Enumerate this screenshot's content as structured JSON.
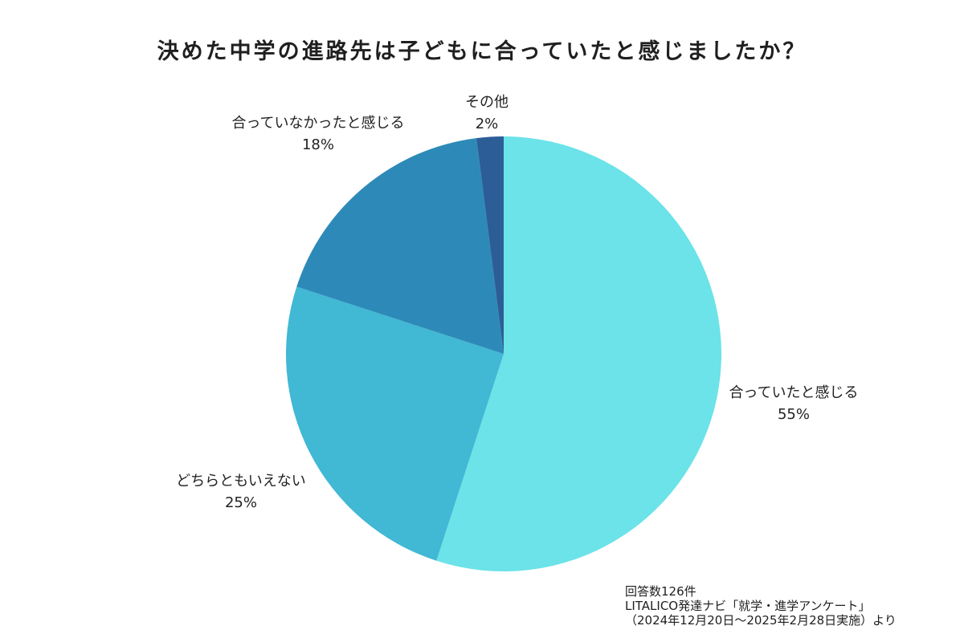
{
  "title": "決めた中学の進路先は子どもに合っていたと感じましたか？",
  "chart_data": {
    "type": "pie",
    "start_angle_deg": 0,
    "direction": "clockwise",
    "slices": [
      {
        "label": "合っていたと感じる",
        "value": 55,
        "value_label": "55%",
        "color": "#6be3e8"
      },
      {
        "label": "どちらともいえない",
        "value": 25,
        "value_label": "25%",
        "color": "#41b8d4"
      },
      {
        "label": "合っていなかったと感じる",
        "value": 18,
        "value_label": "18%",
        "color": "#2d8ab8"
      },
      {
        "label": "その他",
        "value": 2,
        "value_label": "2%",
        "color": "#2c5d96"
      }
    ]
  },
  "footnote": {
    "line1": "回答数126件",
    "line2": "LITALICO発達ナビ「就学・進学アンケート」",
    "line3": "（2024年12月20日～2025年2月28日実施）より"
  }
}
